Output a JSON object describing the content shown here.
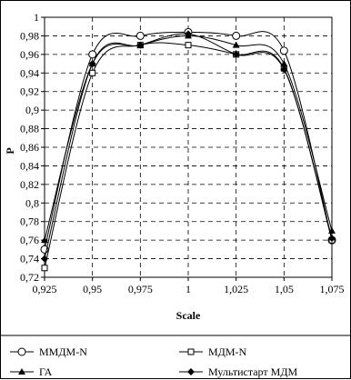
{
  "chart_data": {
    "type": "line",
    "title": "",
    "xlabel": "Scale",
    "ylabel": "P",
    "x": [
      0.925,
      0.95,
      0.975,
      1,
      1.025,
      1.05,
      1.075
    ],
    "x_tick_labels": [
      "0,925",
      "0,95",
      "0,975",
      "1",
      "1,025",
      "1,05",
      "1,075"
    ],
    "ylim": [
      0.72,
      1.0
    ],
    "y_ticks": [
      0.72,
      0.74,
      0.76,
      0.78,
      0.8,
      0.82,
      0.84,
      0.86,
      0.88,
      0.9,
      0.92,
      0.94,
      0.96,
      0.98,
      1.0
    ],
    "y_tick_labels": [
      "0,72",
      "0,74",
      "0,76",
      "0,78",
      "0,8",
      "0,82",
      "0,84",
      "0,86",
      "0,88",
      "0,9",
      "0,92",
      "0,94",
      "0,96",
      "0,98",
      "1"
    ],
    "grid": true,
    "legend_position": "bottom",
    "series": [
      {
        "name": "ММДМ-N",
        "marker": "circle-open",
        "values": [
          0.75,
          0.96,
          0.98,
          0.984,
          0.98,
          0.964,
          0.76
        ]
      },
      {
        "name": "МДМ-N",
        "marker": "square-open",
        "values": [
          0.73,
          0.94,
          0.97,
          0.97,
          0.96,
          0.945,
          0.76
        ]
      },
      {
        "name": "ГА",
        "marker": "triangle-filled",
        "values": [
          0.76,
          0.95,
          0.97,
          0.98,
          0.97,
          0.95,
          0.77
        ]
      },
      {
        "name": "Мультистарт МДМ",
        "marker": "diamond-filled",
        "values": [
          0.74,
          0.95,
          0.97,
          0.982,
          0.96,
          0.944,
          0.762
        ]
      }
    ]
  }
}
